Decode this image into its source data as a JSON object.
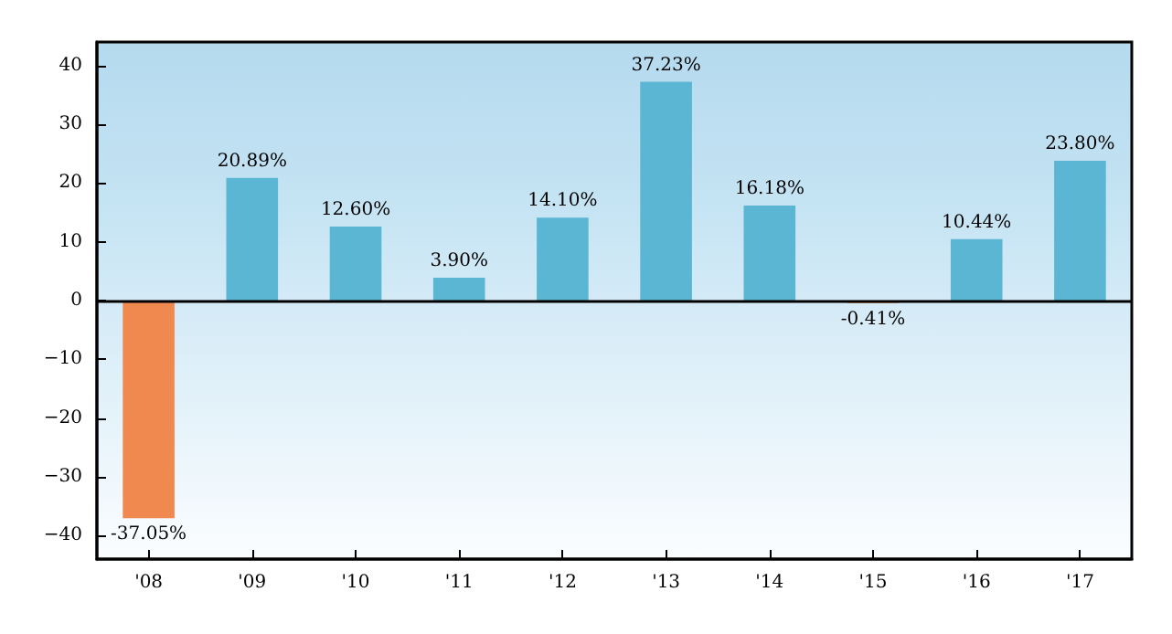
{
  "chart_data": {
    "type": "bar",
    "categories": [
      "'08",
      "'09",
      "'10",
      "'11",
      "'12",
      "'13",
      "'14",
      "'15",
      "'16",
      "'17"
    ],
    "values": [
      -37.05,
      20.89,
      12.6,
      3.9,
      14.1,
      37.23,
      16.18,
      -0.41,
      10.44,
      23.8
    ],
    "colors": [
      "#f0894f",
      "#5ab6d2",
      "#5ab6d2",
      "#5ab6d2",
      "#5ab6d2",
      "#5ab6d2",
      "#5ab6d2",
      "#f0894f",
      "#5ab6d2",
      "#5ab6d2"
    ],
    "value_labels": [
      "-37.05%",
      "20.89%",
      "12.60%",
      "3.90%",
      "14.10%",
      "37.23%",
      "16.18%",
      "-0.41%",
      "10.44%",
      "23.80%"
    ],
    "ylim": [
      -44,
      44
    ],
    "yticks": [
      {
        "value": -40,
        "label": "−40"
      },
      {
        "value": -30,
        "label": "−30"
      },
      {
        "value": -20,
        "label": "−20"
      },
      {
        "value": -10,
        "label": "−10"
      },
      0,
      10,
      20,
      30,
      40
    ],
    "ref_lines": [
      {
        "axis": "y",
        "value": 0,
        "color": "#000000"
      }
    ],
    "grid": false
  }
}
